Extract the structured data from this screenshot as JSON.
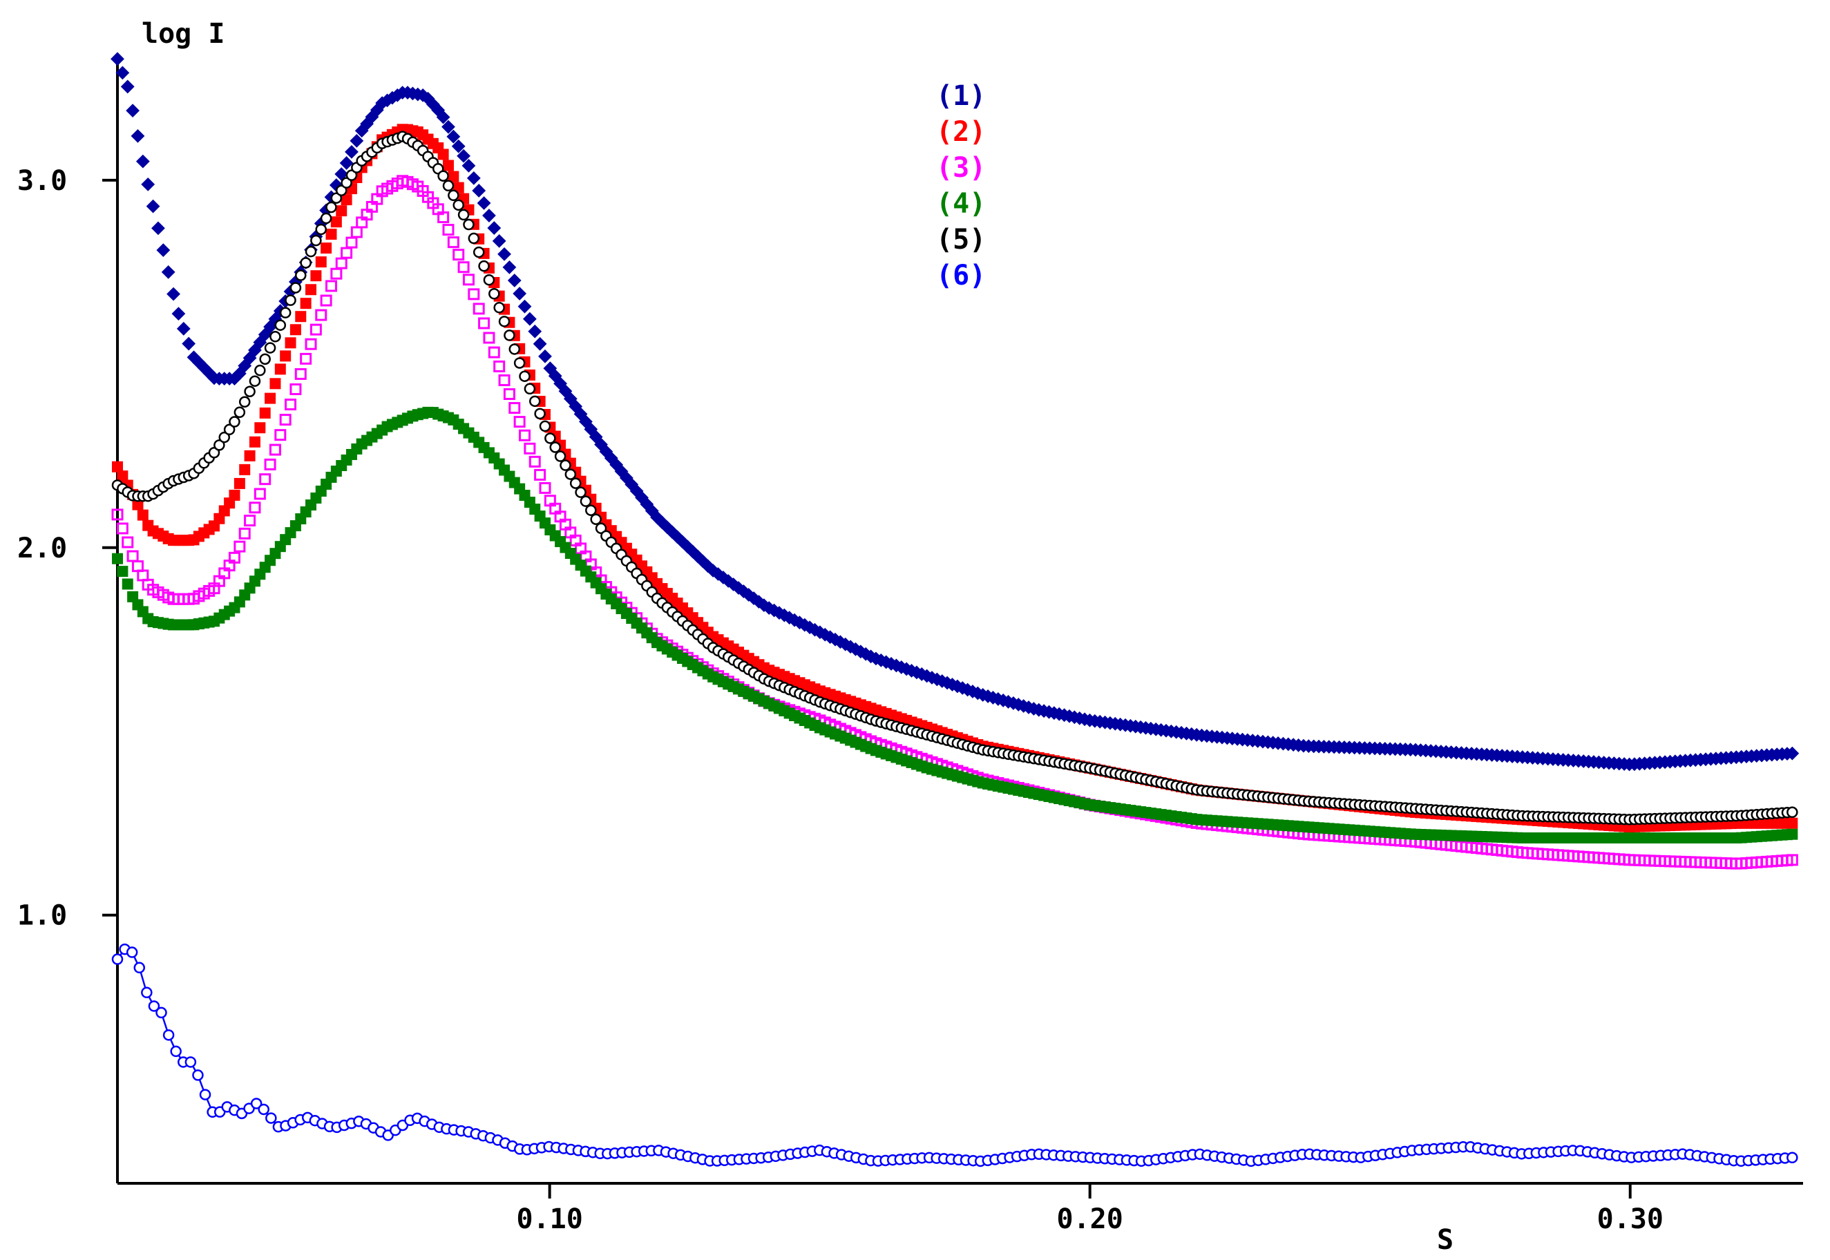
{
  "chart_data": {
    "type": "scatter",
    "title": "",
    "xlabel": "S",
    "ylabel": "log I",
    "xlim": [
      0.02,
      0.332
    ],
    "ylim": [
      0.27,
      3.34
    ],
    "x_ticks": [
      0.1,
      0.2,
      0.3
    ],
    "x_tick_labels": [
      "0.10",
      "0.20",
      "0.30"
    ],
    "y_ticks": [
      1.0,
      2.0,
      3.0
    ],
    "y_tick_labels": [
      "1.0",
      "2.0",
      "3.0"
    ],
    "grid": false,
    "legend_position": "top-center",
    "series": [
      {
        "name": "(1)",
        "color": "#0000a0",
        "marker": "filled-diamond",
        "x": [
          0.02,
          0.022,
          0.025,
          0.028,
          0.031,
          0.034,
          0.038,
          0.042,
          0.046,
          0.05,
          0.055,
          0.06,
          0.065,
          0.069,
          0.073,
          0.077,
          0.08,
          0.085,
          0.09,
          0.095,
          0.1,
          0.11,
          0.12,
          0.13,
          0.14,
          0.15,
          0.16,
          0.17,
          0.18,
          0.19,
          0.2,
          0.22,
          0.24,
          0.26,
          0.28,
          0.3,
          0.32,
          0.33
        ],
        "y": [
          3.33,
          3.25,
          3.03,
          2.84,
          2.65,
          2.52,
          2.46,
          2.46,
          2.55,
          2.64,
          2.78,
          2.97,
          3.13,
          3.21,
          3.24,
          3.23,
          3.18,
          3.04,
          2.86,
          2.67,
          2.49,
          2.27,
          2.08,
          1.94,
          1.84,
          1.77,
          1.7,
          1.65,
          1.6,
          1.56,
          1.53,
          1.49,
          1.46,
          1.45,
          1.43,
          1.41,
          1.43,
          1.44
        ]
      },
      {
        "name": "(2)",
        "color": "#ff0000",
        "marker": "filled-square",
        "x": [
          0.02,
          0.023,
          0.026,
          0.03,
          0.034,
          0.038,
          0.042,
          0.046,
          0.05,
          0.055,
          0.06,
          0.065,
          0.069,
          0.073,
          0.076,
          0.08,
          0.085,
          0.09,
          0.095,
          0.1,
          0.11,
          0.12,
          0.13,
          0.14,
          0.15,
          0.16,
          0.17,
          0.18,
          0.2,
          0.22,
          0.24,
          0.26,
          0.28,
          0.3,
          0.32,
          0.33
        ],
        "y": [
          2.22,
          2.14,
          2.05,
          2.02,
          2.02,
          2.06,
          2.15,
          2.31,
          2.48,
          2.67,
          2.87,
          3.03,
          3.11,
          3.14,
          3.13,
          3.08,
          2.92,
          2.71,
          2.52,
          2.33,
          2.07,
          1.9,
          1.76,
          1.67,
          1.61,
          1.56,
          1.51,
          1.46,
          1.4,
          1.34,
          1.31,
          1.28,
          1.26,
          1.24,
          1.25,
          1.25
        ]
      },
      {
        "name": "(3)",
        "color": "#ff00ff",
        "marker": "open-square",
        "x": [
          0.02,
          0.023,
          0.026,
          0.03,
          0.034,
          0.038,
          0.042,
          0.046,
          0.05,
          0.055,
          0.06,
          0.065,
          0.069,
          0.073,
          0.076,
          0.08,
          0.085,
          0.09,
          0.095,
          0.1,
          0.11,
          0.12,
          0.13,
          0.14,
          0.15,
          0.16,
          0.17,
          0.18,
          0.2,
          0.22,
          0.24,
          0.26,
          0.28,
          0.3,
          0.32,
          0.33
        ],
        "y": [
          2.09,
          1.97,
          1.89,
          1.86,
          1.86,
          1.89,
          1.98,
          2.13,
          2.3,
          2.52,
          2.73,
          2.88,
          2.97,
          3.0,
          2.98,
          2.91,
          2.73,
          2.52,
          2.32,
          2.13,
          1.9,
          1.75,
          1.66,
          1.58,
          1.53,
          1.47,
          1.42,
          1.37,
          1.3,
          1.25,
          1.22,
          1.2,
          1.17,
          1.15,
          1.14,
          1.15
        ]
      },
      {
        "name": "(4)",
        "color": "#008000",
        "marker": "filled-square",
        "x": [
          0.02,
          0.023,
          0.026,
          0.03,
          0.034,
          0.038,
          0.042,
          0.046,
          0.05,
          0.055,
          0.06,
          0.065,
          0.07,
          0.075,
          0.078,
          0.082,
          0.086,
          0.09,
          0.095,
          0.1,
          0.11,
          0.12,
          0.13,
          0.14,
          0.15,
          0.16,
          0.17,
          0.18,
          0.2,
          0.22,
          0.24,
          0.26,
          0.28,
          0.3,
          0.32,
          0.33
        ],
        "y": [
          1.97,
          1.86,
          1.8,
          1.79,
          1.79,
          1.8,
          1.84,
          1.92,
          2.0,
          2.1,
          2.2,
          2.28,
          2.33,
          2.36,
          2.37,
          2.35,
          2.3,
          2.24,
          2.15,
          2.05,
          1.88,
          1.74,
          1.65,
          1.58,
          1.51,
          1.45,
          1.4,
          1.36,
          1.3,
          1.26,
          1.24,
          1.22,
          1.21,
          1.21,
          1.21,
          1.22
        ]
      },
      {
        "name": "(5)",
        "color": "#000000",
        "marker": "open-circle",
        "x": [
          0.02,
          0.023,
          0.026,
          0.03,
          0.034,
          0.038,
          0.042,
          0.046,
          0.05,
          0.055,
          0.06,
          0.065,
          0.069,
          0.073,
          0.076,
          0.08,
          0.085,
          0.09,
          0.095,
          0.1,
          0.11,
          0.12,
          0.13,
          0.14,
          0.15,
          0.16,
          0.17,
          0.18,
          0.2,
          0.22,
          0.24,
          0.26,
          0.28,
          0.3,
          0.32,
          0.33
        ],
        "y": [
          2.17,
          2.14,
          2.14,
          2.18,
          2.2,
          2.26,
          2.35,
          2.47,
          2.6,
          2.78,
          2.94,
          3.05,
          3.1,
          3.12,
          3.09,
          3.02,
          2.88,
          2.68,
          2.48,
          2.3,
          2.04,
          1.86,
          1.73,
          1.64,
          1.58,
          1.53,
          1.49,
          1.45,
          1.4,
          1.34,
          1.31,
          1.29,
          1.27,
          1.26,
          1.27,
          1.28
        ]
      },
      {
        "name": "(6)",
        "color": "#0000ff",
        "marker": "open-circle-line",
        "x": [
          0.02,
          0.022,
          0.024,
          0.026,
          0.028,
          0.03,
          0.032,
          0.034,
          0.036,
          0.038,
          0.04,
          0.043,
          0.046,
          0.05,
          0.055,
          0.06,
          0.065,
          0.07,
          0.075,
          0.08,
          0.085,
          0.09,
          0.095,
          0.1,
          0.11,
          0.12,
          0.13,
          0.14,
          0.15,
          0.16,
          0.17,
          0.18,
          0.19,
          0.2,
          0.21,
          0.22,
          0.23,
          0.24,
          0.25,
          0.26,
          0.27,
          0.28,
          0.29,
          0.3,
          0.31,
          0.32,
          0.33
        ],
        "y": [
          0.88,
          0.92,
          0.86,
          0.76,
          0.74,
          0.65,
          0.6,
          0.6,
          0.52,
          0.45,
          0.48,
          0.46,
          0.49,
          0.42,
          0.45,
          0.42,
          0.44,
          0.4,
          0.45,
          0.42,
          0.41,
          0.39,
          0.36,
          0.37,
          0.35,
          0.36,
          0.33,
          0.34,
          0.36,
          0.33,
          0.34,
          0.33,
          0.35,
          0.34,
          0.33,
          0.35,
          0.33,
          0.35,
          0.34,
          0.36,
          0.37,
          0.35,
          0.36,
          0.34,
          0.35,
          0.33,
          0.34
        ]
      }
    ]
  }
}
